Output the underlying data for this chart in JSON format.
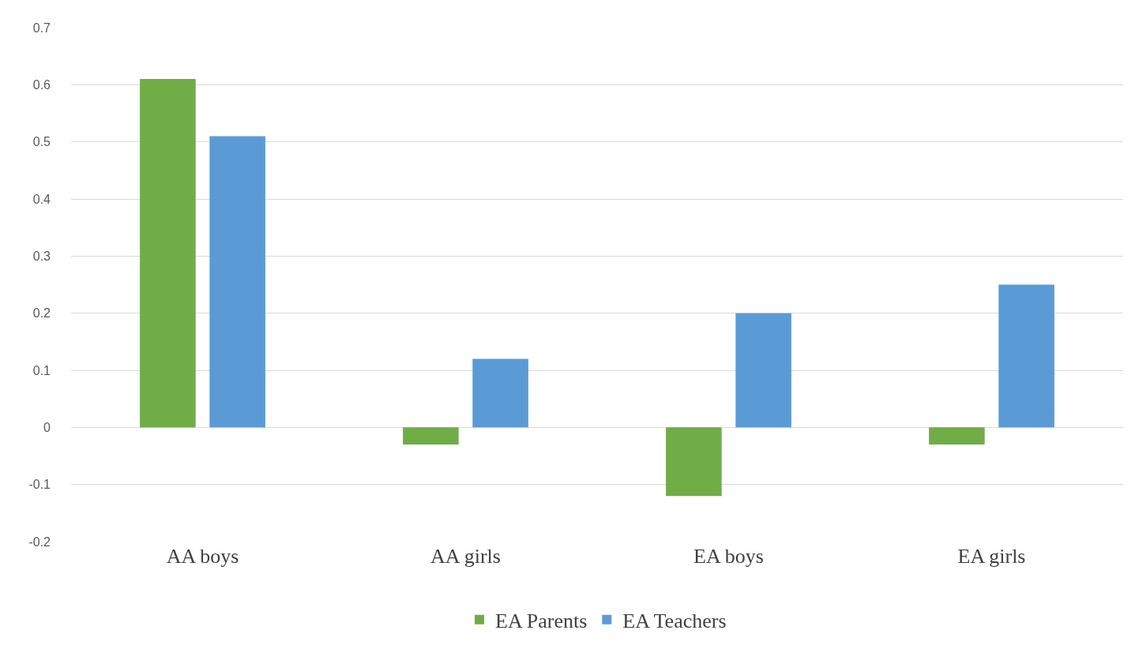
{
  "chart_data": {
    "type": "bar",
    "categories": [
      "AA boys",
      "AA girls",
      "EA boys",
      "EA girls"
    ],
    "series": [
      {
        "name": "EA Parents",
        "color": "#70ad47",
        "values": [
          0.61,
          -0.03,
          -0.12,
          -0.03
        ]
      },
      {
        "name": "EA Teachers",
        "color": "#5b9bd5",
        "values": [
          0.51,
          0.12,
          0.2,
          0.25
        ]
      }
    ],
    "ylim": [
      -0.2,
      0.7
    ],
    "yticks": [
      {
        "value": -0.2,
        "label": "-0.2"
      },
      {
        "value": -0.1,
        "label": "-0.1"
      },
      0,
      0.1,
      0.2,
      0.3,
      0.4,
      0.5,
      0.6,
      0.7
    ],
    "grid": "y",
    "legend": "bottom"
  }
}
